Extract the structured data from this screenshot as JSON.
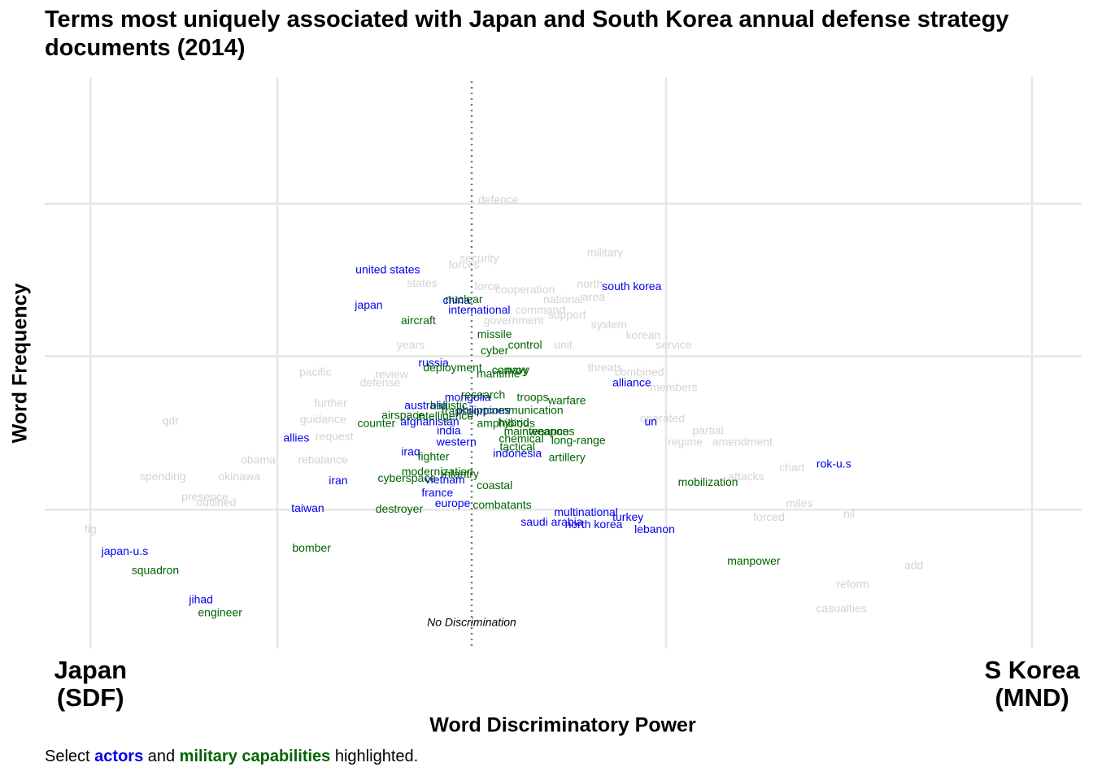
{
  "chart_data": {
    "type": "text_scatter",
    "title_lines": [
      "Terms most uniquely associated with Japan and South Korea annual defense strategy",
      "documents (2014)"
    ],
    "x_label": "Word Discriminatory Power",
    "y_label": "Word Frequency",
    "caption_before": "Select ",
    "caption_middle": " and ",
    "caption_after": " highlighted.",
    "annotation": {
      "text": "No Discrimination",
      "x": 0
    },
    "xlim": [
      -1.12,
      1.6
    ],
    "ylim": [
      0,
      7
    ],
    "xticks": [
      {
        "value": -1,
        "label": "Japan (SDF)"
      },
      {
        "value": 1.47,
        "label": "S Korea (MND)"
      }
    ],
    "xgrid": [
      -0.51,
      0.51
    ],
    "ygrid": [
      1.7,
      3.58,
      5.45
    ],
    "grid_color": "#e6e6e6",
    "series": [
      {
        "color": "#d3d3d3",
        "labels": [
          "defence",
          "military",
          "security",
          "forces",
          "states",
          "north",
          "force",
          "cooperation",
          "area",
          "national",
          "command",
          "support",
          "government",
          "system",
          "korean",
          "years",
          "unit",
          "service",
          "threats",
          "pacific",
          "combined",
          "review",
          "defense",
          "members",
          "further",
          "guidance",
          "qdr",
          "operated",
          "partial",
          "request",
          "regime",
          "amendment",
          "obama",
          "rebalance",
          "chart",
          "spending",
          "okinawa",
          "attacks",
          "presence",
          "outlined",
          "miles",
          "forced",
          "nil",
          "fig",
          "add",
          "reform",
          "casualties"
        ],
        "x": [
          0.07,
          0.35,
          0.02,
          -0.02,
          -0.13,
          0.31,
          0.04,
          0.14,
          0.32,
          0.24,
          0.18,
          0.25,
          0.11,
          0.36,
          0.45,
          -0.16,
          0.24,
          0.53,
          0.35,
          -0.41,
          0.44,
          -0.21,
          -0.24,
          0.53,
          -0.37,
          -0.39,
          -0.79,
          0.5,
          0.62,
          -0.36,
          0.56,
          0.71,
          -0.56,
          -0.39,
          0.84,
          -0.81,
          -0.61,
          0.72,
          -0.7,
          -0.67,
          0.86,
          0.78,
          0.99,
          -1.0,
          1.16,
          1.0,
          0.97
        ],
        "y": [
          5.49,
          4.84,
          4.77,
          4.69,
          4.47,
          4.46,
          4.43,
          4.39,
          4.3,
          4.27,
          4.14,
          4.08,
          4.01,
          3.96,
          3.83,
          3.71,
          3.71,
          3.71,
          3.43,
          3.38,
          3.38,
          3.35,
          3.25,
          3.19,
          3.0,
          2.8,
          2.78,
          2.81,
          2.66,
          2.59,
          2.52,
          2.52,
          2.3,
          2.3,
          2.21,
          2.1,
          2.1,
          2.1,
          1.85,
          1.78,
          1.77,
          1.6,
          1.64,
          1.45,
          1.01,
          0.78,
          0.48
        ]
      },
      {
        "name": "actors",
        "color": "#0000ee",
        "labels": [
          "united states",
          "japan",
          "china",
          "international",
          "south korea",
          "russia",
          "alliance",
          "mongolia",
          "australia",
          "philippines",
          "afghanistan",
          "un",
          "india",
          "allies",
          "western",
          "indonesia",
          "iraq",
          "rok-u.s",
          "vietnam",
          "iran",
          "france",
          "europe",
          "taiwan",
          "multinational",
          "saudi arabia",
          "north korea",
          "turkey",
          "lebanon",
          "japan-u.s",
          "jihad"
        ],
        "x": [
          -0.22,
          -0.27,
          -0.04,
          0.02,
          0.42,
          -0.1,
          0.42,
          -0.01,
          -0.12,
          0.03,
          -0.11,
          0.47,
          -0.06,
          -0.46,
          -0.04,
          0.12,
          -0.16,
          0.95,
          -0.07,
          -0.35,
          -0.09,
          -0.05,
          -0.43,
          0.3,
          0.21,
          0.32,
          0.41,
          0.48,
          -0.91,
          -0.71
        ],
        "y": [
          4.63,
          4.2,
          4.26,
          4.14,
          4.43,
          3.49,
          3.25,
          3.07,
          2.97,
          2.91,
          2.77,
          2.77,
          2.66,
          2.57,
          2.52,
          2.38,
          2.4,
          2.25,
          2.06,
          2.05,
          1.9,
          1.77,
          1.71,
          1.66,
          1.54,
          1.51,
          1.6,
          1.45,
          1.18,
          0.59
        ]
      },
      {
        "name": "military capabilities",
        "color": "#006400",
        "labels": [
          "nuclear",
          "aircraft",
          "missile",
          "cyber",
          "control",
          "deployment",
          "convoy",
          "maritime",
          "navy",
          "research",
          "troops",
          "warfare",
          "ballistic",
          "transport",
          "communication",
          "airspace",
          "intelligence",
          "counter",
          "amphibious",
          "hybrid",
          "maintenance",
          "weapons",
          "chemical",
          "long-range",
          "tactical",
          "fighter",
          "artillery",
          "modernization",
          "cyberspace",
          "infantry",
          "coastal",
          "mobilization",
          "destroyer",
          "combatants",
          "bomber",
          "manpower",
          "squadron",
          "engineer"
        ],
        "x": [
          -0.02,
          -0.14,
          0.06,
          0.06,
          0.14,
          -0.05,
          0.1,
          0.07,
          0.12,
          0.03,
          0.16,
          0.25,
          -0.06,
          -0.02,
          0.14,
          -0.18,
          -0.07,
          -0.25,
          0.09,
          0.11,
          0.17,
          0.21,
          0.13,
          0.28,
          0.12,
          -0.1,
          0.25,
          -0.09,
          -0.17,
          -0.03,
          0.06,
          0.62,
          -0.19,
          0.08,
          -0.42,
          0.74,
          -0.83,
          -0.66
        ],
        "y": [
          4.27,
          4.01,
          3.84,
          3.64,
          3.71,
          3.43,
          3.4,
          3.36,
          3.4,
          3.1,
          3.07,
          3.03,
          2.97,
          2.9,
          2.91,
          2.85,
          2.84,
          2.75,
          2.75,
          2.76,
          2.65,
          2.65,
          2.56,
          2.54,
          2.46,
          2.34,
          2.33,
          2.16,
          2.08,
          2.13,
          1.99,
          2.03,
          1.7,
          1.75,
          1.22,
          1.06,
          0.95,
          0.43
        ]
      }
    ]
  }
}
